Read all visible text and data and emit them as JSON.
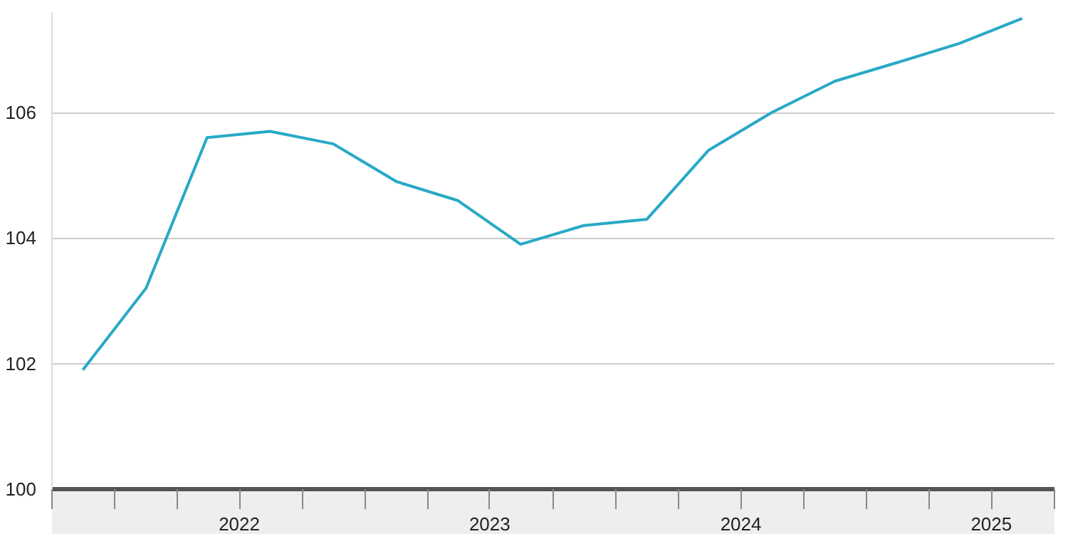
{
  "chart_data": {
    "type": "line",
    "x": [
      "2021-11-15",
      "2022-02-15",
      "2022-05-15",
      "2022-08-15",
      "2022-11-15",
      "2023-02-15",
      "2023-05-15",
      "2023-08-15",
      "2023-11-15",
      "2024-02-15",
      "2024-05-15",
      "2024-08-15",
      "2024-11-15",
      "2025-02-15",
      "2025-05-15",
      "2025-08-15"
    ],
    "series": [
      {
        "color": "#27a9c6",
        "values": [
          101.9,
          103.2,
          105.6,
          105.7,
          105.5,
          104.9,
          104.6,
          103.9,
          104.2,
          104.3,
          105.4,
          106.0,
          106.5,
          106.8,
          107.1,
          107.5
        ]
      }
    ],
    "xlim": [
      "2021-10-01",
      "2025-10-01"
    ],
    "xticks": [
      {
        "value": "2021-10-01",
        "label": null
      },
      {
        "value": "2022-01-01",
        "label": null
      },
      {
        "value": "2022-04-01",
        "label": null
      },
      {
        "value": "2022-07-01",
        "label": "2022"
      },
      {
        "value": "2022-10-01",
        "label": null
      },
      {
        "value": "2023-01-01",
        "label": null
      },
      {
        "value": "2023-04-01",
        "label": null
      },
      {
        "value": "2023-07-01",
        "label": "2023"
      },
      {
        "value": "2023-10-01",
        "label": null
      },
      {
        "value": "2024-01-01",
        "label": null
      },
      {
        "value": "2024-04-01",
        "label": null
      },
      {
        "value": "2024-07-01",
        "label": "2024"
      },
      {
        "value": "2024-10-01",
        "label": null
      },
      {
        "value": "2025-01-01",
        "label": null
      },
      {
        "value": "2025-04-01",
        "label": null
      },
      {
        "value": "2025-07-01",
        "label": "2025"
      },
      {
        "value": "2025-10-01",
        "label": null
      }
    ],
    "ylim": [
      100,
      107.6
    ],
    "yticks": [
      100,
      102,
      104,
      106
    ],
    "grid": "y",
    "marker": "none",
    "line_style": "solid"
  }
}
